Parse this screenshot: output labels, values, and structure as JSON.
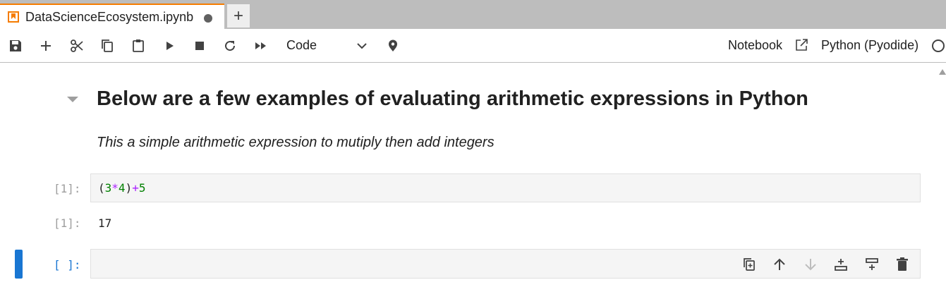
{
  "tab": {
    "title": "DataScienceEcosystem.ipynb",
    "icon": "notebook-icon",
    "add_label": "+"
  },
  "toolbar": {
    "cell_type": "Code",
    "notebook_link": "Notebook",
    "kernel_name": "Python (Pyodide)",
    "buttons": [
      "save-icon",
      "add-icon",
      "cut-icon",
      "copy-icon",
      "paste-icon",
      "run-icon",
      "stop-icon",
      "restart-icon",
      "fast-forward-icon",
      "pin-icon"
    ]
  },
  "cells": {
    "markdown": {
      "heading": "Below are a few examples of evaluating arithmetic expressions in Python",
      "paragraph": "This a simple arithmetic expression to mutiply then add integers"
    },
    "code1": {
      "prompt": "[1]:",
      "tokens": {
        "open_paren": "(",
        "n1": "3",
        "op_mul": "*",
        "n2": "4",
        "close_paren": ")",
        "op_add": "+",
        "n3": "5"
      },
      "output_prompt": "[1]:",
      "output": "17"
    },
    "code2": {
      "prompt": "[ ]:",
      "tools": [
        "duplicate-icon",
        "move-up-icon",
        "move-down-icon",
        "insert-above-icon",
        "insert-below-icon",
        "delete-icon"
      ]
    }
  },
  "colors": {
    "accent": "#f57c00",
    "active": "#1976d2",
    "number": "#008000",
    "operator": "#aa22ff"
  }
}
